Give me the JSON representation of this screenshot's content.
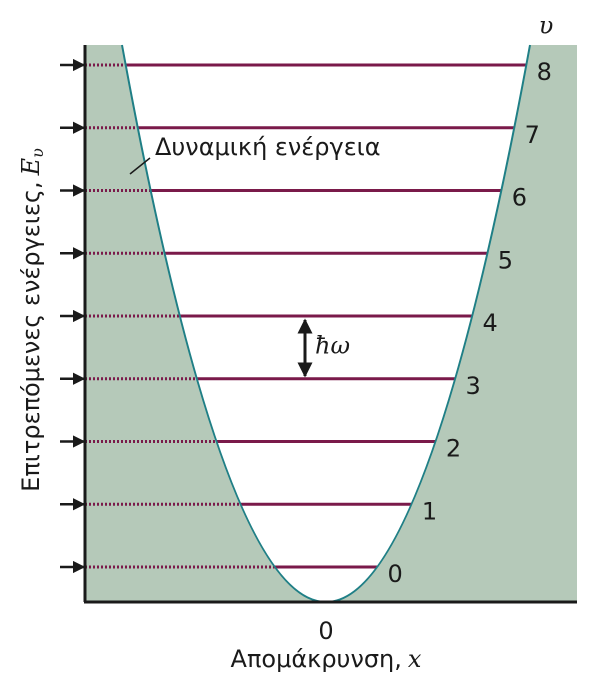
{
  "y_axis": {
    "label": "Επιτρεπόμενες ενέργειες,",
    "symbol": "E",
    "subscript": "υ"
  },
  "x_axis": {
    "label": "Απομάκρυνση,",
    "symbol": "x",
    "tick": "0"
  },
  "quantum_number_header": "υ",
  "curve_label": "Δυναμική ενέργεια",
  "spacing_label": "ħω",
  "levels": [
    "0",
    "1",
    "2",
    "3",
    "4",
    "5",
    "6",
    "7",
    "8"
  ]
}
